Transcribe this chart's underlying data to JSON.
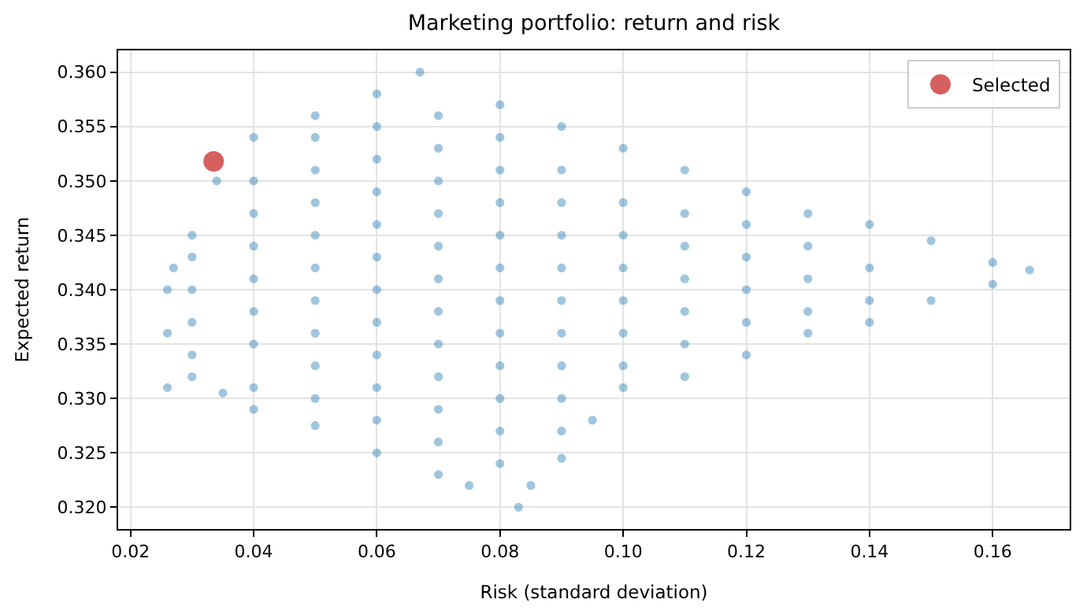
{
  "chart_data": {
    "type": "scatter",
    "title": "Marketing portfolio: return and risk",
    "xlabel": "Risk (standard deviation)",
    "ylabel": "Expected return",
    "xlim": [
      0.018,
      0.1725
    ],
    "ylim": [
      0.318,
      0.362
    ],
    "xticks": [
      0.02,
      0.04,
      0.06,
      0.08,
      {
        "value": 0.1,
        "label": "0.10"
      },
      0.12,
      0.14,
      0.16
    ],
    "yticks": [
      {
        "value": 0.32,
        "label": "0.320"
      },
      {
        "value": 0.325,
        "label": "0.325"
      },
      {
        "value": 0.33,
        "label": "0.330"
      },
      {
        "value": 0.335,
        "label": "0.335"
      },
      {
        "value": 0.34,
        "label": "0.340"
      },
      {
        "value": 0.345,
        "label": "0.345"
      },
      {
        "value": 0.35,
        "label": "0.350"
      },
      {
        "value": 0.355,
        "label": "0.355"
      },
      {
        "value": 0.36,
        "label": "0.360"
      }
    ],
    "grid": true,
    "legend": "top right",
    "marker": "circle",
    "series": [
      {
        "color": "#1f77b4",
        "x": [
          0.026,
          0.026,
          0.026,
          0.027,
          0.03,
          0.034,
          0.04,
          0.05,
          0.06,
          0.067,
          0.08,
          0.09,
          0.1,
          0.11,
          0.12,
          0.13,
          0.14,
          0.15,
          0.16,
          0.166,
          0.16,
          0.15,
          0.14,
          0.13,
          0.12,
          0.11,
          0.1,
          0.095,
          0.09,
          0.085,
          0.083,
          0.075,
          0.07,
          0.06,
          0.05,
          0.04,
          0.035,
          0.03,
          0.03,
          0.03,
          0.03,
          0.03,
          0.04,
          0.04,
          0.04,
          0.04,
          0.04,
          0.04,
          0.04,
          0.05,
          0.05,
          0.05,
          0.05,
          0.05,
          0.05,
          0.05,
          0.05,
          0.05,
          0.06,
          0.06,
          0.06,
          0.06,
          0.06,
          0.06,
          0.06,
          0.06,
          0.06,
          0.06,
          0.07,
          0.07,
          0.07,
          0.07,
          0.07,
          0.07,
          0.07,
          0.07,
          0.07,
          0.07,
          0.07,
          0.08,
          0.08,
          0.08,
          0.08,
          0.08,
          0.08,
          0.08,
          0.08,
          0.08,
          0.08,
          0.08,
          0.09,
          0.09,
          0.09,
          0.09,
          0.09,
          0.09,
          0.09,
          0.09,
          0.09,
          0.1,
          0.1,
          0.1,
          0.1,
          0.1,
          0.1,
          0.11,
          0.11,
          0.11,
          0.11,
          0.11,
          0.12,
          0.12,
          0.12,
          0.12,
          0.13,
          0.13,
          0.13,
          0.14,
          0.14
        ],
        "values": [
          0.331,
          0.336,
          0.34,
          0.342,
          0.345,
          0.35,
          0.354,
          0.356,
          0.358,
          0.36,
          0.357,
          0.355,
          0.353,
          0.351,
          0.349,
          0.347,
          0.346,
          0.3445,
          0.3425,
          0.3418,
          0.3405,
          0.339,
          0.337,
          0.336,
          0.334,
          0.332,
          0.331,
          0.328,
          0.3245,
          0.322,
          0.32,
          0.322,
          0.323,
          0.325,
          0.3275,
          0.329,
          0.3305,
          0.332,
          0.334,
          0.337,
          0.34,
          0.343,
          0.331,
          0.335,
          0.338,
          0.341,
          0.344,
          0.347,
          0.35,
          0.33,
          0.333,
          0.336,
          0.339,
          0.342,
          0.345,
          0.348,
          0.351,
          0.354,
          0.328,
          0.331,
          0.334,
          0.337,
          0.34,
          0.343,
          0.346,
          0.349,
          0.352,
          0.355,
          0.326,
          0.329,
          0.332,
          0.335,
          0.338,
          0.341,
          0.344,
          0.347,
          0.35,
          0.353,
          0.356,
          0.324,
          0.327,
          0.33,
          0.333,
          0.336,
          0.339,
          0.342,
          0.345,
          0.348,
          0.351,
          0.354,
          0.327,
          0.33,
          0.333,
          0.336,
          0.339,
          0.342,
          0.345,
          0.348,
          0.351,
          0.333,
          0.336,
          0.339,
          0.342,
          0.345,
          0.348,
          0.335,
          0.338,
          0.341,
          0.344,
          0.347,
          0.337,
          0.34,
          0.343,
          0.346,
          0.338,
          0.341,
          0.344,
          0.339,
          0.342
        ]
      },
      {
        "name": "Selected",
        "color": "#d65f5f",
        "x": [
          0.0335
        ],
        "values": [
          0.3518
        ]
      }
    ]
  }
}
